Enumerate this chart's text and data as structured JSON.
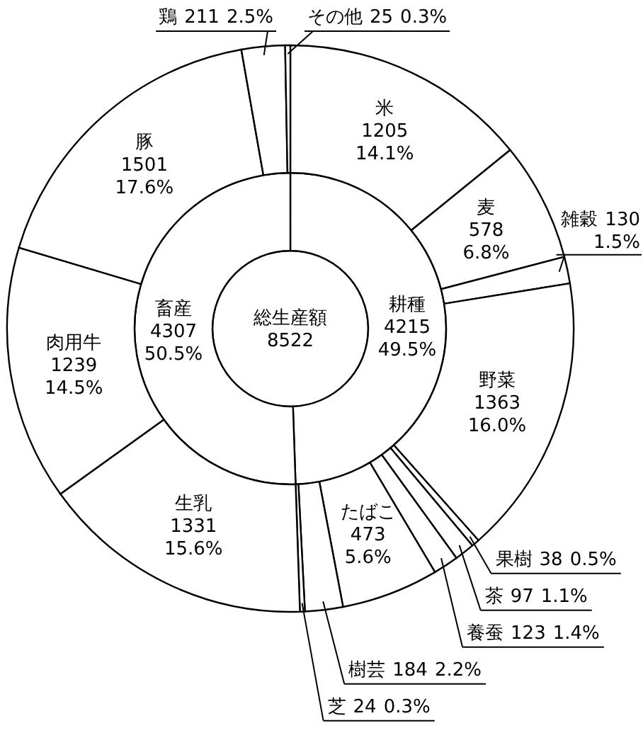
{
  "chart_data": [
    {
      "type": "pie",
      "categories": [
        "総生産額"
      ],
      "values": [
        8522
      ],
      "colors": [
        "#ffffff"
      ],
      "data_labels": true
    },
    {
      "type": "donut",
      "categories": [
        "耕種",
        "畜産"
      ],
      "values": [
        4215,
        4307
      ],
      "colors": [
        "#ffffff",
        "#ffffff"
      ],
      "data_labels": true,
      "annotations": [
        {
          "text": "49.5%",
          "x": "耕種"
        },
        {
          "text": "50.5%",
          "x": "畜産"
        }
      ]
    },
    {
      "type": "donut",
      "categories": [
        "米",
        "麦",
        "雑穀",
        "野菜",
        "果樹",
        "茶",
        "養蚕",
        "たばこ",
        "樹芸",
        "芝",
        "生乳",
        "肉用牛",
        "豚",
        "鶏",
        "その他"
      ],
      "values": [
        1205,
        578,
        130,
        1363,
        38,
        97,
        123,
        473,
        184,
        24,
        1331,
        1239,
        1501,
        211,
        25
      ],
      "colors": [
        "#ffffff",
        "#ffffff",
        "#ffffff",
        "#ffffff",
        "#ffffff",
        "#ffffff",
        "#ffffff",
        "#ffffff",
        "#ffffff",
        "#ffffff",
        "#ffffff",
        "#ffffff",
        "#ffffff",
        "#ffffff",
        "#ffffff"
      ],
      "data_labels": true,
      "annotations": [
        {
          "text": "14.1%",
          "x": "米"
        },
        {
          "text": "6.8%",
          "x": "麦"
        },
        {
          "text": "1.5%",
          "x": "雑穀"
        },
        {
          "text": "16.0%",
          "x": "野菜"
        },
        {
          "text": "0.5%",
          "x": "果樹"
        },
        {
          "text": "1.1%",
          "x": "茶"
        },
        {
          "text": "1.4%",
          "x": "養蚕"
        },
        {
          "text": "5.6%",
          "x": "たばこ"
        },
        {
          "text": "2.2%",
          "x": "樹芸"
        },
        {
          "text": "0.3%",
          "x": "芝"
        },
        {
          "text": "15.6%",
          "x": "生乳"
        },
        {
          "text": "14.5%",
          "x": "肉用牛"
        },
        {
          "text": "17.6%",
          "x": "豚"
        },
        {
          "text": "2.5%",
          "x": "鶏"
        },
        {
          "text": "0.3%",
          "x": "その他"
        }
      ]
    }
  ]
}
